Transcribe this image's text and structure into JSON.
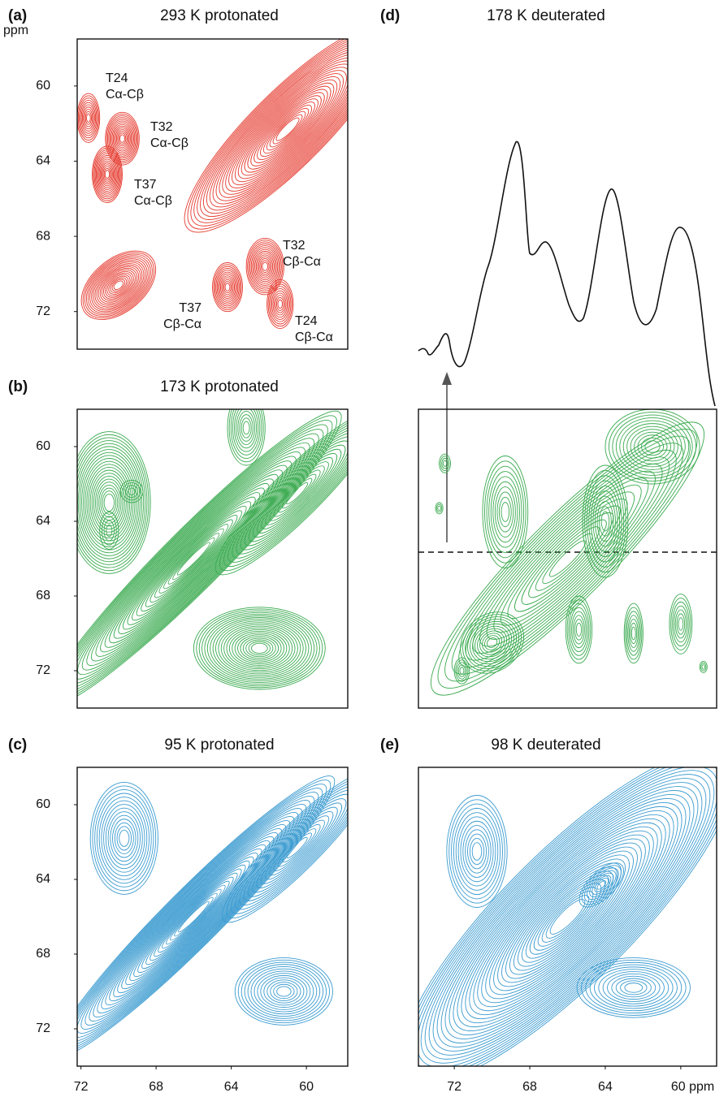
{
  "chart_data": [
    {
      "type": "contour",
      "panel_label": "(a)",
      "title": "293 K protonated",
      "color": "#e5392d",
      "xlim": [
        72.2,
        57.8
      ],
      "ylim": [
        57.5,
        74
      ],
      "yticks": [
        60,
        64,
        68,
        72
      ],
      "y_unit": "ppm",
      "annotations": [
        [
          "T24",
          "Cα-Cβ"
        ],
        [
          "T32",
          "Cα-Cβ"
        ],
        [
          "T37",
          "Cα-Cβ"
        ],
        [
          "T32",
          "Cβ-Cα"
        ],
        [
          "T37",
          "Cβ-Cα"
        ],
        [
          "T24",
          "Cβ-Cα"
        ]
      ]
    },
    {
      "type": "contour",
      "panel_label": "(b)",
      "title": "173 K protonated",
      "color": "#3aaa4f",
      "xlim": [
        72.2,
        57.8
      ],
      "ylim": [
        58,
        74
      ],
      "yticks": [
        60,
        64,
        68,
        72
      ]
    },
    {
      "type": "contour",
      "panel_label": "(c)",
      "title": "95 K protonated",
      "color": "#3b9bd0",
      "xlim": [
        72.2,
        57.8
      ],
      "ylim": [
        58,
        74
      ],
      "yticks": [
        60,
        64,
        68,
        72
      ],
      "xticks": [
        72,
        68,
        64,
        60
      ]
    },
    {
      "type": "contour",
      "panel_label": "(d)",
      "title": "178 K deuterated",
      "color": "#3aaa4f",
      "xlim": [
        73.9,
        58.1
      ],
      "ylim": [
        58,
        74
      ]
    },
    {
      "type": "contour",
      "panel_label": "(e)",
      "title": "98 K deuterated",
      "color": "#3b9bd0",
      "xlim": [
        73.9,
        58.1
      ],
      "ylim": [
        58,
        74
      ],
      "xticks": [
        72,
        68,
        64,
        {
          "value": 60,
          "label": "60 ppm"
        }
      ]
    }
  ]
}
